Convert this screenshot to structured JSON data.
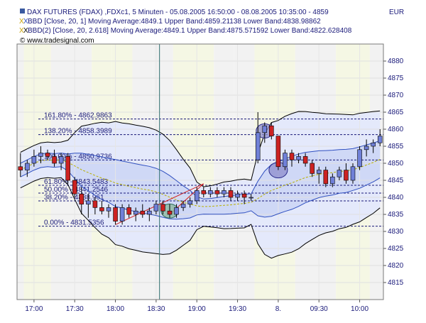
{
  "header": {
    "title": "DAX FUTURES (FDAX) ,FDXc1, 5 Minuten - 05.08.2005 16:50:00 - 08.08.2005 10:35:00 - 4859",
    "currency": "EUR",
    "indicator1": "BBD [Close, 20, 1] Moving Average:4849.1 Upper Band:4859.21138 Lower Band:4838.98862",
    "indicator2": "BBD(2) [Close, 20, 2.618] Moving Average:4849.1 Upper Band:4875.571592 Lower Band:4822.628408",
    "watermark": "© www.tradesignal.com",
    "title_icon_color": "#3a5aa0",
    "indicator_icon_colors": [
      "#c8a000",
      "#3050c0"
    ]
  },
  "chart_data": {
    "type": "candlestick",
    "ylim": [
      4810,
      4885
    ],
    "yticks": [
      4815,
      4820,
      4825,
      4830,
      4835,
      4840,
      4845,
      4850,
      4855,
      4860,
      4865,
      4870,
      4875,
      4880
    ],
    "xlabels": [
      {
        "label": "17:00",
        "index": 2
      },
      {
        "label": "17:30",
        "index": 8
      },
      {
        "label": "18:00",
        "index": 14
      },
      {
        "label": "18:30",
        "index": 20
      },
      {
        "label": "19:00",
        "index": 26
      },
      {
        "label": "19:30",
        "index": 32
      },
      {
        "label": "8.",
        "index": 38
      },
      {
        "label": "09:30",
        "index": 44
      },
      {
        "label": "10:00",
        "index": 50
      }
    ],
    "candles": [
      {
        "o": 4849,
        "h": 4853,
        "l": 4846,
        "c": 4848
      },
      {
        "o": 4848,
        "h": 4851,
        "l": 4846,
        "c": 4850
      },
      {
        "o": 4850,
        "h": 4854,
        "l": 4849,
        "c": 4852
      },
      {
        "o": 4852,
        "h": 4855,
        "l": 4850,
        "c": 4853
      },
      {
        "o": 4853,
        "h": 4854,
        "l": 4851,
        "c": 4852
      },
      {
        "o": 4852,
        "h": 4854,
        "l": 4849,
        "c": 4850
      },
      {
        "o": 4850,
        "h": 4853,
        "l": 4848,
        "c": 4852
      },
      {
        "o": 4852,
        "h": 4853,
        "l": 4844,
        "c": 4845
      },
      {
        "o": 4845,
        "h": 4846,
        "l": 4840,
        "c": 4841
      },
      {
        "o": 4841,
        "h": 4843,
        "l": 4835,
        "c": 4838
      },
      {
        "o": 4838,
        "h": 4841,
        "l": 4834,
        "c": 4839
      },
      {
        "o": 4839,
        "h": 4840,
        "l": 4835,
        "c": 4837
      },
      {
        "o": 4837,
        "h": 4839,
        "l": 4835,
        "c": 4836
      },
      {
        "o": 4836,
        "h": 4838,
        "l": 4834,
        "c": 4837
      },
      {
        "o": 4837,
        "h": 4838,
        "l": 4832,
        "c": 4833
      },
      {
        "o": 4833,
        "h": 4838,
        "l": 4832,
        "c": 4837
      },
      {
        "o": 4837,
        "h": 4838,
        "l": 4834,
        "c": 4835
      },
      {
        "o": 4835,
        "h": 4837,
        "l": 4833,
        "c": 4836
      },
      {
        "o": 4836,
        "h": 4838,
        "l": 4834,
        "c": 4835
      },
      {
        "o": 4835,
        "h": 4837,
        "l": 4833,
        "c": 4836
      },
      {
        "o": 4836,
        "h": 4839,
        "l": 4835,
        "c": 4838
      },
      {
        "o": 4838,
        "h": 4839,
        "l": 4835,
        "c": 4836
      },
      {
        "o": 4836,
        "h": 4838,
        "l": 4834,
        "c": 4835
      },
      {
        "o": 4835,
        "h": 4838,
        "l": 4834,
        "c": 4837
      },
      {
        "o": 4837,
        "h": 4839,
        "l": 4836,
        "c": 4838
      },
      {
        "o": 4838,
        "h": 4840,
        "l": 4837,
        "c": 4839
      },
      {
        "o": 4839,
        "h": 4843,
        "l": 4838,
        "c": 4842
      },
      {
        "o": 4842,
        "h": 4843,
        "l": 4840,
        "c": 4841
      },
      {
        "o": 4841,
        "h": 4843,
        "l": 4840,
        "c": 4842
      },
      {
        "o": 4842,
        "h": 4843,
        "l": 4840,
        "c": 4841
      },
      {
        "o": 4841,
        "h": 4843,
        "l": 4840,
        "c": 4842
      },
      {
        "o": 4842,
        "h": 4843,
        "l": 4839,
        "c": 4840
      },
      {
        "o": 4840,
        "h": 4842,
        "l": 4839,
        "c": 4841
      },
      {
        "o": 4841,
        "h": 4842,
        "l": 4838,
        "c": 4840
      },
      {
        "o": 4840,
        "h": 4841,
        "l": 4839,
        "c": 4840
      },
      {
        "o": 4851,
        "h": 4865,
        "l": 4850,
        "c": 4859
      },
      {
        "o": 4859,
        "h": 4862,
        "l": 4856,
        "c": 4861
      },
      {
        "o": 4861,
        "h": 4862,
        "l": 4857,
        "c": 4858
      },
      {
        "o": 4858,
        "h": 4858,
        "l": 4848,
        "c": 4849
      },
      {
        "o": 4849,
        "h": 4854,
        "l": 4848,
        "c": 4853
      },
      {
        "o": 4853,
        "h": 4854,
        "l": 4849,
        "c": 4851
      },
      {
        "o": 4851,
        "h": 4853,
        "l": 4850,
        "c": 4852
      },
      {
        "o": 4852,
        "h": 4853,
        "l": 4849,
        "c": 4850
      },
      {
        "o": 4850,
        "h": 4851,
        "l": 4846,
        "c": 4847
      },
      {
        "o": 4847,
        "h": 4849,
        "l": 4844,
        "c": 4848
      },
      {
        "o": 4848,
        "h": 4849,
        "l": 4843,
        "c": 4844
      },
      {
        "o": 4844,
        "h": 4847,
        "l": 4843,
        "c": 4846
      },
      {
        "o": 4846,
        "h": 4849,
        "l": 4845,
        "c": 4848
      },
      {
        "o": 4848,
        "h": 4850,
        "l": 4844,
        "c": 4845
      },
      {
        "o": 4845,
        "h": 4850,
        "l": 4844,
        "c": 4849
      },
      {
        "o": 4849,
        "h": 4855,
        "l": 4848,
        "c": 4854
      },
      {
        "o": 4854,
        "h": 4857,
        "l": 4852,
        "c": 4855
      },
      {
        "o": 4855,
        "h": 4857,
        "l": 4853,
        "c": 4856
      },
      {
        "o": 4856,
        "h": 4860,
        "l": 4855,
        "c": 4858
      }
    ],
    "fib_levels": [
      {
        "label": "161.80% - 4862.9863",
        "value": 4862.9863
      },
      {
        "label": "138.20% - 4858.3989",
        "value": 4858.3989
      },
      {
        "label": "100.00% - 4850.9736",
        "value": 4850.9736
      },
      {
        "label": "61.80% - 4843.5483",
        "value": 4843.5483
      },
      {
        "label": "50.00% - 4841.2546",
        "value": 4841.2546
      },
      {
        "label": "38.20% - 4838.961",
        "value": 4838.961
      },
      {
        "label": "0.00% - 4831.5356",
        "value": 4831.5356
      }
    ],
    "vertical_marker_index": 20,
    "colors": {
      "bull": "#7080d8",
      "bear": "#cc2222",
      "band1": "#3050c0",
      "band2": "#000000",
      "fib": "#1a1a7a",
      "ma": "#b8b000",
      "fill": "#dfe6f8",
      "marker": "#2f6f6f",
      "trend": "#d02020"
    }
  }
}
